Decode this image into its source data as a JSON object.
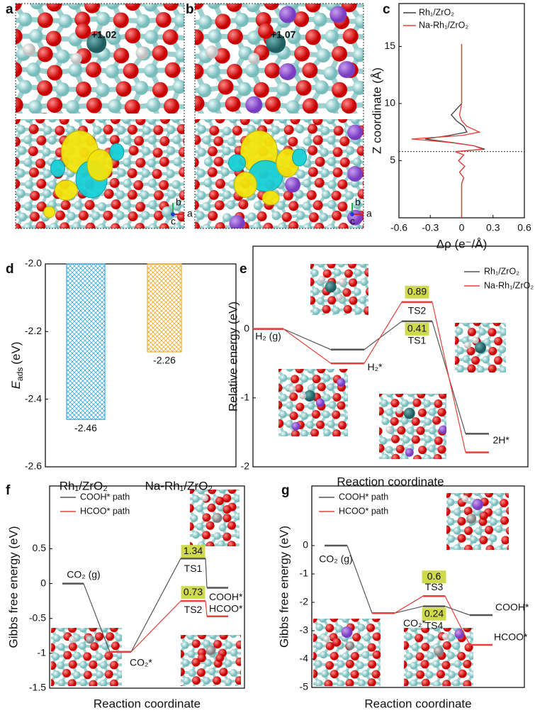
{
  "figure": {
    "panel_labels": [
      "a",
      "b",
      "c",
      "d",
      "e",
      "f",
      "g"
    ],
    "structures": [
      {
        "charge": "+1.02",
        "axes": [
          "b",
          "a",
          "c"
        ]
      },
      {
        "charge": "+1.07",
        "axes": [
          "b",
          "a",
          "c"
        ]
      }
    ]
  },
  "chart_data": [
    {
      "type": "line",
      "orientation": "horizontal",
      "xlabel": "Δρ (e⁻/Å)",
      "ylabel": "Z coordinate (Å)",
      "y": [
        0,
        3,
        3.5,
        4,
        4.5,
        5,
        5.5,
        5.8,
        6.0,
        6.3,
        6.6,
        6.9,
        7.2,
        7.5,
        8.0,
        8.5,
        9.0,
        9.5,
        10,
        11,
        15.2
      ],
      "series": [
        {
          "name": "Rh₁/ZrO₂",
          "color": "#404040",
          "values": [
            0,
            0,
            0.02,
            -0.02,
            0.03,
            -0.03,
            0.02,
            -0.06,
            0.22,
            0.12,
            -0.1,
            -0.35,
            -0.12,
            0.05,
            0.02,
            -0.05,
            -0.1,
            -0.05,
            0,
            0,
            0
          ]
        },
        {
          "name": "Na-Rh₁/ZrO₂",
          "color": "#e8403a",
          "values": [
            0,
            0,
            0.02,
            -0.02,
            0.03,
            -0.03,
            0.02,
            -0.06,
            0.2,
            0.12,
            -0.12,
            -0.48,
            0,
            0.17,
            0.05,
            0,
            -0.02,
            -0.01,
            0,
            0,
            0
          ]
        }
      ],
      "xlim": [
        -0.6,
        0.6
      ],
      "xticks": [
        -0.6,
        -0.3,
        0,
        0.3,
        0.6
      ],
      "ylim": [
        0,
        18.75
      ],
      "yticks": [
        5,
        10,
        15
      ],
      "reference_line": 5.8,
      "legend": "upper left"
    },
    {
      "type": "bar",
      "ylabel": {
        "main": "E",
        "sub": "ads",
        "unit": "(eV)"
      },
      "categories": [
        "Rh₁/ZrO₂",
        "Na-Rh₁/ZrO₂"
      ],
      "values": [
        -2.46,
        -2.26
      ],
      "colors": [
        "#3aa8e0",
        "#f0aa2c"
      ],
      "ylim": [
        -2.6,
        -2.0
      ],
      "yticks": [
        -2.6,
        -2.4,
        -2.2,
        {
          "value": -2.0,
          "label": "-2.0"
        }
      ]
    },
    {
      "type": "energy",
      "ylabel": "Relative energy (eV)",
      "xlabel": "Reaction coordinate",
      "ylim": [
        -2,
        1.2
      ],
      "yticks": [
        -2,
        -1,
        0
      ],
      "legend": "upper right",
      "series": [
        {
          "name": "Rh₁/ZrO₂",
          "color": "#555555",
          "values": [
            0,
            -0.3,
            0.11,
            -1.52
          ],
          "point_labels": [
            "H₂ (g)",
            null,
            "TS1",
            "2H*"
          ],
          "barriers": [
            null,
            null,
            0.41,
            null
          ]
        },
        {
          "name": "Na-Rh₁/ZrO₂",
          "color": "#e8403a",
          "values": [
            0,
            -0.5,
            0.39,
            -1.79
          ],
          "point_labels": [
            null,
            "H₂*",
            "TS2",
            null
          ],
          "barriers": [
            null,
            null,
            0.89,
            null
          ]
        }
      ]
    },
    {
      "type": "energy",
      "ylabel": "Gibbs free energy (eV)",
      "xlabel": "Reaction coordinate",
      "ylim": [
        -1.5,
        1.4
      ],
      "yticks": [
        -1.5,
        -1,
        -0.5,
        0,
        0.5
      ],
      "legend": "upper left",
      "series": [
        {
          "name": "COOH* path",
          "color": "#555555",
          "values": [
            0,
            -0.98,
            0.36,
            -0.06
          ],
          "point_labels": [
            "CO₂ (g)",
            "CO₂*",
            "TS1",
            "COOH*"
          ],
          "barriers": [
            null,
            null,
            1.34,
            null
          ]
        },
        {
          "name": "HCOO* path",
          "color": "#e8403a",
          "values": [
            null,
            -0.98,
            -0.25,
            -0.47
          ],
          "point_labels": [
            null,
            null,
            "TS2",
            "HCOO*"
          ],
          "barriers": [
            null,
            null,
            0.73,
            null
          ]
        }
      ]
    },
    {
      "type": "energy",
      "ylabel": "Gibbs free energy (eV)",
      "xlabel": "Reaction coordinate",
      "ylim": [
        -5,
        2.1
      ],
      "yticks": [
        -5,
        -4,
        -3,
        -2,
        -1,
        0
      ],
      "legend": "upper left",
      "series": [
        {
          "name": "COOH* path",
          "color": "#555555",
          "values": [
            0,
            -2.38,
            -2.14,
            -2.45
          ],
          "point_labels": [
            "CO₂ (g)",
            "CO₂*",
            "TS4",
            "COOH*"
          ],
          "barriers": [
            null,
            null,
            0.24,
            null
          ]
        },
        {
          "name": "HCOO* path",
          "color": "#e8403a",
          "values": [
            null,
            -2.38,
            -1.78,
            -3.5
          ],
          "point_labels": [
            null,
            null,
            "TS3",
            "HCOO*"
          ],
          "barriers": [
            null,
            null,
            0.6,
            null
          ]
        }
      ]
    }
  ]
}
